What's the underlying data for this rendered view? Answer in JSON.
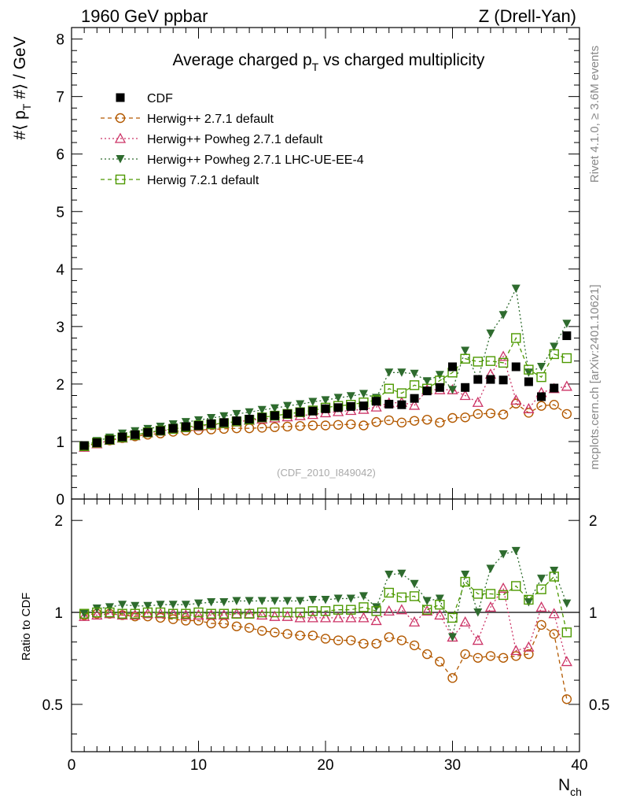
{
  "header": {
    "left": "1960 GeV ppbar",
    "right": "Z (Drell-Yan)"
  },
  "side_labels": {
    "rivet": "Rivet 4.1.0, ≥ 3.6M events",
    "mcplots": "mcplots.cern.ch [arXiv:2401.10621]"
  },
  "colors": {
    "CDF": "#000000",
    "herwig_pp": "#b35900",
    "herwig_powheg": "#cc3366",
    "herwig_powheg_ue": "#2e6b2e",
    "herwig7": "#4d9900"
  },
  "chart_data": [
    {
      "type": "scatter",
      "panel": "main",
      "title": "Average charged p_T vs charged multiplicity",
      "title_main": "Average charged p",
      "title_sub": "T",
      "title_rest": " vs charged multiplicity",
      "watermark": "(CDF_2010_I849042)",
      "ylabel": "#⟨ p_T #⟩ / GeV",
      "ylabel_parts": [
        "#⟨ p",
        "T",
        " #⟩ / GeV"
      ],
      "xlim": [
        0,
        40
      ],
      "ylim": [
        0,
        8.2
      ],
      "yticks": [
        0,
        1,
        2,
        3,
        4,
        5,
        6,
        7,
        8
      ],
      "yticklabels": [
        "0",
        "1",
        "2",
        "3",
        "4",
        "5",
        "6",
        "7",
        "8"
      ],
      "legend": [
        "CDF",
        "Herwig++ 2.7.1 default",
        "Herwig++ Powheg 2.7.1 default",
        "Herwig++ Powheg 2.7.1 LHC-UE-EE-4",
        "Herwig 7.2.1 default"
      ],
      "legend_position": "top-left",
      "x": [
        1,
        2,
        3,
        4,
        5,
        6,
        7,
        8,
        9,
        10,
        11,
        12,
        13,
        14,
        15,
        16,
        17,
        18,
        19,
        20,
        21,
        22,
        23,
        24,
        25,
        26,
        27,
        28,
        29,
        30,
        31,
        32,
        33,
        34,
        35,
        36,
        37,
        38,
        39
      ],
      "series": [
        {
          "name": "CDF",
          "marker": "filled-square",
          "values": [
            0.93,
            0.98,
            1.03,
            1.08,
            1.12,
            1.16,
            1.19,
            1.23,
            1.26,
            1.28,
            1.31,
            1.33,
            1.36,
            1.39,
            1.42,
            1.45,
            1.48,
            1.51,
            1.53,
            1.57,
            1.59,
            1.61,
            1.62,
            1.7,
            1.65,
            1.64,
            1.75,
            1.88,
            1.94,
            2.3,
            1.94,
            2.08,
            2.08,
            2.07,
            2.3,
            2.04,
            1.78,
            1.93,
            2.84
          ]
        },
        {
          "name": "Herwig++ 2.7.1 default",
          "marker": "open-circle",
          "line": "dashed",
          "values": [
            0.91,
            0.97,
            1.02,
            1.06,
            1.09,
            1.12,
            1.14,
            1.17,
            1.19,
            1.2,
            1.21,
            1.22,
            1.23,
            1.23,
            1.24,
            1.25,
            1.26,
            1.27,
            1.28,
            1.28,
            1.29,
            1.3,
            1.28,
            1.34,
            1.37,
            1.33,
            1.36,
            1.38,
            1.33,
            1.41,
            1.42,
            1.48,
            1.49,
            1.47,
            1.66,
            1.5,
            1.62,
            1.64,
            1.48
          ]
        },
        {
          "name": "Herwig++ Powheg 2.7.1 default",
          "marker": "open-triangle",
          "line": "dotted",
          "values": [
            0.9,
            0.96,
            1.02,
            1.06,
            1.1,
            1.15,
            1.18,
            1.22,
            1.24,
            1.26,
            1.29,
            1.31,
            1.34,
            1.37,
            1.39,
            1.41,
            1.43,
            1.45,
            1.47,
            1.5,
            1.52,
            1.54,
            1.56,
            1.6,
            1.67,
            1.68,
            1.63,
            1.9,
            1.9,
            1.9,
            1.8,
            1.68,
            2.17,
            2.48,
            1.72,
            1.57,
            1.85,
            1.92,
            1.96
          ]
        },
        {
          "name": "Herwig++ Powheg 2.7.1 LHC-UE-EE-4",
          "marker": "filled-triangle-down",
          "line": "dotted",
          "values": [
            0.93,
            1.01,
            1.07,
            1.14,
            1.18,
            1.22,
            1.26,
            1.3,
            1.34,
            1.37,
            1.41,
            1.44,
            1.48,
            1.51,
            1.55,
            1.58,
            1.62,
            1.65,
            1.69,
            1.72,
            1.76,
            1.79,
            1.83,
            1.76,
            2.2,
            2.2,
            2.18,
            2.05,
            2.16,
            1.9,
            2.58,
            2.08,
            2.88,
            3.2,
            3.66,
            2.2,
            2.3,
            2.65,
            3.05
          ]
        },
        {
          "name": "Herwig 7.2.1 default",
          "marker": "open-square",
          "line": "dashed",
          "values": [
            0.92,
            0.98,
            1.03,
            1.07,
            1.11,
            1.16,
            1.19,
            1.22,
            1.25,
            1.28,
            1.3,
            1.32,
            1.35,
            1.38,
            1.42,
            1.45,
            1.48,
            1.51,
            1.54,
            1.59,
            1.62,
            1.64,
            1.68,
            1.72,
            1.92,
            1.84,
            1.98,
            1.92,
            2.06,
            2.2,
            2.44,
            2.39,
            2.4,
            2.37,
            2.8,
            2.25,
            2.12,
            2.52,
            2.45
          ]
        }
      ]
    },
    {
      "type": "scatter",
      "panel": "ratio",
      "ylabel": "Ratio to CDF",
      "xlabel": "N_ch",
      "xlabel_main": "N",
      "xlabel_sub": "ch",
      "xlim": [
        0,
        40
      ],
      "ylim": [
        0.35,
        2.35
      ],
      "yscale": "log",
      "xticks": [
        0,
        10,
        20,
        30,
        40
      ],
      "xticklabels": [
        "0",
        "10",
        "20",
        "30",
        "40"
      ],
      "yticks": [
        0.5,
        1,
        2
      ],
      "yticklabels": [
        "0.5",
        "1",
        "2"
      ],
      "x": [
        1,
        2,
        3,
        4,
        5,
        6,
        7,
        8,
        9,
        10,
        11,
        12,
        13,
        14,
        15,
        16,
        17,
        18,
        19,
        20,
        21,
        22,
        23,
        24,
        25,
        26,
        27,
        28,
        29,
        30,
        31,
        32,
        33,
        34,
        35,
        36,
        37,
        38,
        39
      ],
      "series": [
        {
          "name": "Herwig++ 2.7.1 default",
          "values": [
            0.98,
            0.99,
            0.99,
            0.98,
            0.97,
            0.97,
            0.96,
            0.95,
            0.94,
            0.94,
            0.92,
            0.92,
            0.9,
            0.89,
            0.87,
            0.86,
            0.85,
            0.84,
            0.84,
            0.82,
            0.81,
            0.81,
            0.79,
            0.79,
            0.83,
            0.81,
            0.78,
            0.73,
            0.69,
            0.61,
            0.73,
            0.71,
            0.72,
            0.71,
            0.72,
            0.73,
            0.91,
            0.85,
            0.52
          ]
        },
        {
          "name": "Herwig++ Powheg 2.7.1 default",
          "values": [
            0.97,
            0.98,
            0.99,
            0.98,
            0.98,
            0.99,
            0.99,
            0.99,
            0.98,
            0.98,
            0.98,
            0.98,
            0.99,
            0.99,
            0.98,
            0.97,
            0.97,
            0.96,
            0.96,
            0.96,
            0.96,
            0.96,
            0.96,
            0.94,
            1.01,
            1.02,
            0.93,
            1.01,
            0.98,
            0.83,
            0.93,
            0.81,
            1.04,
            1.2,
            0.75,
            0.77,
            1.04,
            0.99,
            0.69
          ]
        },
        {
          "name": "Herwig++ Powheg 2.7.1 LHC-UE-EE-4",
          "values": [
            0.99,
            1.03,
            1.04,
            1.06,
            1.05,
            1.05,
            1.06,
            1.06,
            1.06,
            1.07,
            1.08,
            1.08,
            1.09,
            1.09,
            1.09,
            1.09,
            1.09,
            1.09,
            1.1,
            1.1,
            1.11,
            1.11,
            1.13,
            1.04,
            1.33,
            1.34,
            1.24,
            1.09,
            1.11,
            0.83,
            1.33,
            1.0,
            1.39,
            1.55,
            1.59,
            1.08,
            1.29,
            1.37,
            1.07
          ]
        },
        {
          "name": "Herwig 7.2.1 default",
          "values": [
            0.99,
            1.0,
            1.0,
            0.99,
            0.99,
            1.0,
            1.0,
            0.99,
            0.99,
            1.0,
            0.99,
            0.99,
            0.99,
            0.99,
            1.0,
            1.0,
            1.0,
            1.0,
            1.01,
            1.01,
            1.02,
            1.02,
            1.04,
            1.01,
            1.16,
            1.12,
            1.13,
            1.02,
            1.06,
            0.96,
            1.26,
            1.15,
            1.15,
            1.14,
            1.22,
            1.1,
            1.19,
            1.31,
            0.86
          ]
        }
      ]
    }
  ]
}
